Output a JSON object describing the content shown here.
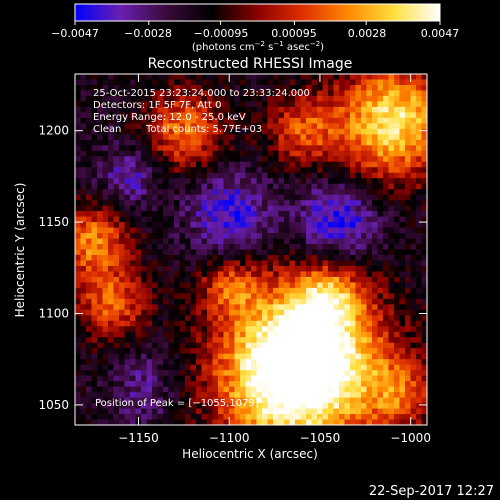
{
  "colorbar": {
    "ticks": [
      "−0.0047",
      "−0.0028",
      "−0.00095",
      "0.00095",
      "0.0028",
      "0.0047"
    ],
    "tick_values": [
      -0.0047,
      -0.0028,
      -0.00095,
      0.00095,
      0.0028,
      0.0047
    ],
    "range": [
      -0.0047,
      0.0047
    ],
    "units_prefix": "(photons cm",
    "units_sup1": "−2",
    "units_mid": " s",
    "units_sup2": "−1",
    "units_mid2": " asec",
    "units_sup3": "−2",
    "units_suffix": ")",
    "colors": [
      "#0000ff",
      "#6a1fb0",
      "#3a0a3a",
      "#000000",
      "#8a0000",
      "#e03000",
      "#ff8a00",
      "#ffe040",
      "#ffffff"
    ]
  },
  "chart_data": {
    "type": "heatmap",
    "title": "Reconstructed RHESSI Image",
    "xlabel": "Heliocentric X (arcsec)",
    "ylabel": "Heliocentric Y (arcsec)",
    "xlim": [
      -1185,
      -991
    ],
    "ylim": [
      1039,
      1231
    ],
    "xticks": [
      -1150,
      -1100,
      -1050,
      -1000
    ],
    "xtick_labels": [
      "−1150",
      "−1100",
      "−1050",
      "−1000"
    ],
    "yticks": [
      1050,
      1100,
      1150,
      1200
    ],
    "ytick_labels": [
      "1050",
      "1100",
      "1150",
      "1200"
    ],
    "peak_position": [
      -1055,
      1079
    ],
    "sources": [
      {
        "x": -1055,
        "y": 1079,
        "level": 1.0,
        "spread": 28
      },
      {
        "x": -1010,
        "y": 1205,
        "level": 0.95,
        "spread": 22
      },
      {
        "x": -1070,
        "y": 1060,
        "level": 0.7,
        "spread": 30
      },
      {
        "x": -1175,
        "y": 1140,
        "level": 0.65,
        "spread": 14
      },
      {
        "x": -1165,
        "y": 1105,
        "level": 0.55,
        "spread": 14
      },
      {
        "x": -1125,
        "y": 1200,
        "level": 0.6,
        "spread": 16
      },
      {
        "x": -1060,
        "y": 1200,
        "level": 0.5,
        "spread": 14
      },
      {
        "x": -1100,
        "y": 1115,
        "level": 0.45,
        "spread": 11
      },
      {
        "x": -1045,
        "y": 1110,
        "level": 0.45,
        "spread": 12
      },
      {
        "x": -1135,
        "y": 1060,
        "level": 0.35,
        "spread": 12
      },
      {
        "x": -1005,
        "y": 1055,
        "level": 0.45,
        "spread": 14
      }
    ],
    "negative_regions": [
      {
        "x": -1140,
        "y": 1060,
        "level": -0.55,
        "spread": 14
      },
      {
        "x": -1100,
        "y": 1155,
        "level": -0.45,
        "spread": 16
      },
      {
        "x": -1040,
        "y": 1150,
        "level": -0.5,
        "spread": 16
      },
      {
        "x": -1155,
        "y": 1175,
        "level": -0.35,
        "spread": 12
      }
    ]
  },
  "annotations": {
    "line1": "25-Oct-2015 23:23:24.000 to 23:33:24.000",
    "line2": "Detectors: 1F 5F 7F, Att 0",
    "line3": "Energy Range: 12.0 - 25.0 keV",
    "line4_a": "Clean",
    "line4_b": "Total counts: 5.77E+03",
    "peak": "Position of Peak = [−1055,1079]"
  },
  "timestamp": "22-Sep-2017 12:27"
}
